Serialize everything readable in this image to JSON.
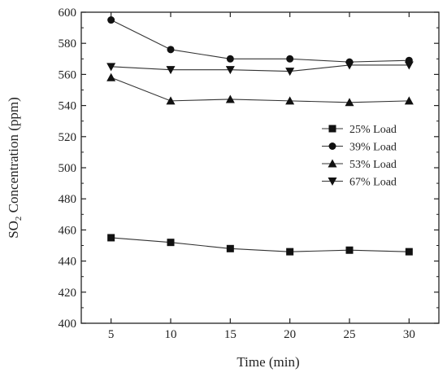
{
  "chart_data": {
    "type": "line",
    "title": "",
    "xlabel": "Time (min)",
    "ylabel": {
      "prefix": "SO",
      "subscript": "2",
      "suffix": " Concentration (ppm)"
    },
    "xlim": [
      2.5,
      32.5
    ],
    "ylim": [
      400,
      600
    ],
    "x_ticks": [
      5,
      10,
      15,
      20,
      25,
      30
    ],
    "y_ticks": [
      400,
      420,
      440,
      460,
      480,
      500,
      520,
      540,
      560,
      580,
      600
    ],
    "x": [
      5,
      10,
      15,
      20,
      25,
      30
    ],
    "legend_position": "right-middle",
    "grid": false,
    "series": [
      {
        "name": "25% Load",
        "marker": "square",
        "values": [
          455,
          452,
          448,
          446,
          447,
          446
        ]
      },
      {
        "name": "39% Load",
        "marker": "circle",
        "values": [
          595,
          576,
          570,
          570,
          568,
          569
        ]
      },
      {
        "name": "53% Load",
        "marker": "triangle-up",
        "values": [
          558,
          543,
          544,
          543,
          542,
          543
        ]
      },
      {
        "name": "67% Load",
        "marker": "triangle-down",
        "values": [
          565,
          563,
          563,
          562,
          566,
          566
        ]
      }
    ]
  }
}
